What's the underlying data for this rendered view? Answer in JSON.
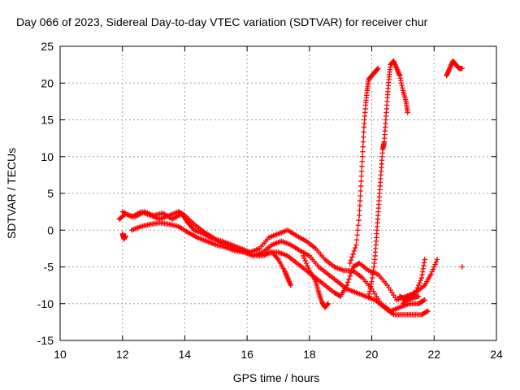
{
  "chart_data": {
    "type": "scatter",
    "title": "Day 066 of 2023, Sidereal Day-to-day VTEC variation (SDTVAR) for receiver chur",
    "xlabel": "GPS time / hours",
    "ylabel": "SDTVAR / TECUs",
    "xlim": [
      10,
      24
    ],
    "ylim": [
      -15,
      25
    ],
    "xticks": [
      "10",
      "12",
      "14",
      "16",
      "18",
      "20",
      "22",
      "24"
    ],
    "yticks": [
      "-15",
      "-10",
      "-5",
      "0",
      "5",
      "10",
      "15",
      "20",
      "25"
    ],
    "grid": true,
    "marker": "+",
    "series": [
      {
        "name": "SDTVAR",
        "color": "#ff0000",
        "tracks": [
          [
            [
              11.9,
              1.5
            ],
            [
              12.1,
              2.2
            ],
            [
              12.4,
              1.8
            ],
            [
              12.7,
              2.5
            ],
            [
              13.0,
              2.0
            ],
            [
              13.3,
              2.3
            ],
            [
              13.6,
              1.5
            ],
            [
              13.9,
              2.2
            ],
            [
              14.1,
              1.0
            ],
            [
              14.3,
              0.0
            ],
            [
              14.6,
              -0.5
            ],
            [
              14.9,
              -1.2
            ],
            [
              15.2,
              -1.5
            ],
            [
              15.5,
              -2.0
            ],
            [
              15.8,
              -2.5
            ],
            [
              16.1,
              -3.0
            ],
            [
              16.4,
              -2.5
            ],
            [
              16.7,
              -1.0
            ],
            [
              17.0,
              -0.5
            ],
            [
              17.3,
              0.0
            ],
            [
              17.6,
              -0.8
            ],
            [
              17.9,
              -1.5
            ],
            [
              18.2,
              -2.5
            ],
            [
              18.5,
              -4.0
            ],
            [
              18.8,
              -5.0
            ],
            [
              19.1,
              -5.5
            ],
            [
              19.4,
              -5.5
            ],
            [
              19.7,
              -6.5
            ],
            [
              20.0,
              -8.0
            ],
            [
              20.3,
              -10.0
            ],
            [
              20.6,
              -11.0
            ],
            [
              20.9,
              -10.5
            ],
            [
              21.2,
              -10.0
            ],
            [
              21.5,
              -10.0
            ],
            [
              21.7,
              -9.5
            ]
          ],
          [
            [
              12.3,
              0.0
            ],
            [
              12.6,
              0.5
            ],
            [
              12.9,
              0.8
            ],
            [
              13.2,
              1.0
            ],
            [
              13.5,
              0.8
            ],
            [
              13.8,
              0.5
            ],
            [
              14.1,
              -0.3
            ],
            [
              14.4,
              -1.0
            ],
            [
              14.7,
              -1.5
            ],
            [
              15.0,
              -2.0
            ],
            [
              15.3,
              -2.3
            ],
            [
              15.6,
              -2.8
            ],
            [
              15.9,
              -3.0
            ],
            [
              16.2,
              -3.5
            ],
            [
              16.5,
              -3.0
            ],
            [
              16.8,
              -2.0
            ],
            [
              17.1,
              -1.5
            ],
            [
              17.4,
              -2.0
            ],
            [
              17.7,
              -2.8
            ],
            [
              18.0,
              -3.5
            ],
            [
              18.3,
              -5.0
            ],
            [
              18.6,
              -6.0
            ],
            [
              18.9,
              -7.0
            ],
            [
              19.2,
              -8.0
            ],
            [
              19.5,
              -8.5
            ],
            [
              19.8,
              -9.0
            ],
            [
              20.1,
              -9.5
            ],
            [
              20.4,
              -10.5
            ],
            [
              20.7,
              -11.5
            ],
            [
              21.0,
              -11.5
            ],
            [
              21.3,
              -11.5
            ],
            [
              21.6,
              -11.5
            ],
            [
              21.8,
              -11.0
            ]
          ],
          [
            [
              12.0,
              2.5
            ],
            [
              12.3,
              1.8
            ],
            [
              12.6,
              2.5
            ],
            [
              12.9,
              2.0
            ],
            [
              13.2,
              1.5
            ],
            [
              13.5,
              2.0
            ],
            [
              13.8,
              2.5
            ],
            [
              14.0,
              2.0
            ],
            [
              14.3,
              0.8
            ],
            [
              14.6,
              -0.2
            ],
            [
              14.9,
              -1.0
            ],
            [
              15.2,
              -1.8
            ],
            [
              15.5,
              -2.2
            ],
            [
              15.8,
              -2.8
            ],
            [
              16.1,
              -3.3
            ],
            [
              16.4,
              -3.5
            ],
            [
              16.7,
              -3.0
            ],
            [
              17.0,
              -3.0
            ],
            [
              17.3,
              -3.5
            ],
            [
              17.6,
              -4.5
            ],
            [
              17.9,
              -5.5
            ],
            [
              18.2,
              -6.5
            ],
            [
              18.5,
              -7.5
            ],
            [
              18.8,
              -8.5
            ],
            [
              19.0,
              -9.0
            ],
            [
              19.2,
              -7.5
            ],
            [
              19.4,
              -5.0
            ],
            [
              19.6,
              -4.5
            ],
            [
              19.9,
              -5.5
            ],
            [
              20.2,
              -6.0
            ],
            [
              20.5,
              -7.5
            ],
            [
              20.8,
              -9.5
            ],
            [
              21.1,
              -9.0
            ],
            [
              21.4,
              -8.5
            ],
            [
              21.7,
              -7.5
            ],
            [
              21.9,
              -6.0
            ],
            [
              22.1,
              -4.0
            ]
          ],
          [
            [
              12.0,
              -0.5
            ],
            [
              12.05,
              -1.2
            ],
            [
              12.1,
              -0.8
            ]
          ],
          [
            [
              16.5,
              -3.5
            ],
            [
              16.8,
              -3.0
            ],
            [
              17.0,
              -4.0
            ],
            [
              17.2,
              -5.5
            ],
            [
              17.3,
              -6.5
            ],
            [
              17.4,
              -7.5
            ]
          ],
          [
            [
              17.8,
              -3.5
            ],
            [
              18.0,
              -5.5
            ],
            [
              18.2,
              -7.0
            ],
            [
              18.3,
              -8.5
            ],
            [
              18.4,
              -9.8
            ],
            [
              18.5,
              -10.5
            ],
            [
              18.6,
              -10.0
            ]
          ],
          [
            [
              19.3,
              -4.5
            ],
            [
              19.5,
              -2.0
            ],
            [
              19.6,
              2.0
            ],
            [
              19.65,
              6.0
            ],
            [
              19.7,
              10.0
            ],
            [
              19.75,
              14.0
            ],
            [
              19.8,
              17.0
            ],
            [
              19.85,
              19.0
            ],
            [
              19.9,
              20.5
            ],
            [
              20.0,
              21.0
            ],
            [
              20.1,
              21.5
            ],
            [
              20.2,
              22.0
            ]
          ],
          [
            [
              19.9,
              -9.0
            ],
            [
              20.0,
              -7.0
            ],
            [
              20.1,
              -4.0
            ],
            [
              20.15,
              -1.0
            ],
            [
              20.2,
              2.0
            ],
            [
              20.25,
              5.0
            ],
            [
              20.3,
              8.0
            ],
            [
              20.35,
              11.0
            ],
            [
              20.4,
              12.0
            ],
            [
              20.45,
              15.0
            ],
            [
              20.5,
              18.0
            ],
            [
              20.55,
              20.5
            ],
            [
              20.6,
              22.5
            ],
            [
              20.7,
              23.0
            ],
            [
              20.8,
              22.0
            ],
            [
              20.9,
              21.0
            ],
            [
              21.0,
              19.0
            ],
            [
              21.1,
              17.5
            ],
            [
              21.15,
              16.0
            ]
          ],
          [
            [
              21.0,
              -10.0
            ],
            [
              21.2,
              -9.0
            ],
            [
              21.4,
              -8.5
            ],
            [
              21.6,
              -6.5
            ],
            [
              21.7,
              -4.0
            ]
          ],
          [
            [
              20.9,
              -9.0
            ],
            [
              21.1,
              -9.5
            ],
            [
              21.3,
              -9.2
            ],
            [
              21.5,
              -9.0
            ]
          ],
          [
            [
              22.4,
              21.0
            ],
            [
              22.5,
              22.0
            ],
            [
              22.6,
              23.0
            ],
            [
              22.7,
              22.5
            ],
            [
              22.8,
              22.0
            ],
            [
              22.9,
              22.0
            ]
          ],
          [
            [
              22.9,
              -5.0
            ]
          ]
        ]
      }
    ]
  }
}
